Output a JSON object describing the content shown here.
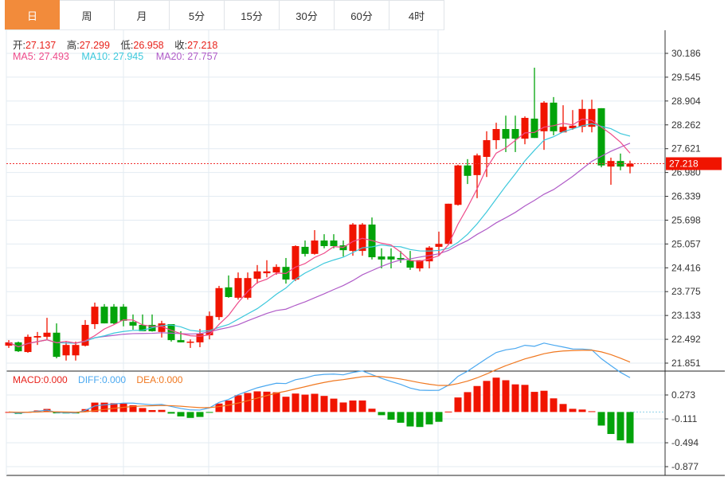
{
  "tabs": [
    "日",
    "周",
    "月",
    "5分",
    "15分",
    "30分",
    "60分",
    "4时"
  ],
  "active_tab": 0,
  "ohlc": {
    "open_label": "开:",
    "open": "27.137",
    "high_label": "高:",
    "high": "27.299",
    "low_label": "低:",
    "low": "26.958",
    "close_label": "收:",
    "close": "27.218"
  },
  "ma": {
    "ma5": "MA5: 27.493",
    "ma10": "MA10: 27.945",
    "ma20": "MA20: 27.757"
  },
  "macd": {
    "macd": "MACD:0.000",
    "diff": "DIFF:0.000",
    "dea": "DEA:0.000"
  },
  "current_price": "27.218",
  "colors": {
    "up": "#f01400",
    "down": "#02a30a",
    "ma5": "#ee4b8a",
    "ma10": "#3cc8dc",
    "ma20": "#b05cc8",
    "diff": "#4aa8f0",
    "dea": "#f07820",
    "accent": "#f28b3b"
  },
  "chart_data": {
    "type": "candlestick",
    "price_ticks": [
      "30.186",
      "29.545",
      "28.904",
      "28.262",
      "27.621",
      "26.980",
      "26.339",
      "25.698",
      "25.057",
      "24.416",
      "23.775",
      "23.133",
      "22.492",
      "21.851"
    ],
    "ylim": [
      21.851,
      30.186
    ],
    "macd_ticks": [
      "0.273",
      "-0.111",
      "-0.494",
      "-0.877"
    ],
    "macd_ylim": [
      -0.877,
      0.273
    ],
    "candles": [
      [
        22.32,
        22.47,
        22.26,
        22.41
      ],
      [
        22.41,
        22.43,
        22.15,
        22.17
      ],
      [
        22.15,
        22.62,
        22.13,
        22.56
      ],
      [
        22.54,
        22.69,
        22.34,
        22.58
      ],
      [
        22.56,
        23.07,
        22.49,
        22.67
      ],
      [
        22.67,
        22.92,
        21.98,
        22.02
      ],
      [
        22.06,
        22.43,
        21.92,
        22.34
      ],
      [
        22.06,
        22.43,
        21.92,
        22.34
      ],
      [
        22.32,
        23.01,
        22.3,
        22.88
      ],
      [
        22.9,
        23.48,
        22.77,
        23.37
      ],
      [
        23.37,
        23.44,
        22.92,
        22.92
      ],
      [
        23.37,
        23.44,
        22.9,
        22.92
      ],
      [
        23.37,
        23.44,
        22.84,
        22.99
      ],
      [
        22.96,
        23.16,
        22.75,
        22.86
      ],
      [
        22.88,
        23.16,
        22.71,
        22.71
      ],
      [
        22.88,
        23.16,
        22.7,
        22.71
      ],
      [
        22.69,
        22.99,
        22.54,
        22.92
      ],
      [
        22.9,
        22.9,
        22.43,
        22.47
      ],
      [
        22.47,
        22.71,
        22.41,
        22.41
      ],
      [
        22.41,
        22.49,
        22.26,
        22.43
      ],
      [
        22.41,
        22.77,
        22.28,
        22.64
      ],
      [
        22.6,
        23.24,
        22.49,
        23.12
      ],
      [
        23.09,
        23.93,
        23.01,
        23.87
      ],
      [
        23.89,
        24.21,
        23.61,
        23.63
      ],
      [
        23.61,
        24.29,
        23.56,
        24.14
      ],
      [
        23.61,
        24.29,
        23.56,
        24.14
      ],
      [
        24.12,
        24.49,
        23.99,
        24.32
      ],
      [
        24.27,
        24.62,
        24.16,
        24.32
      ],
      [
        24.29,
        24.51,
        24.23,
        24.44
      ],
      [
        24.44,
        24.68,
        23.99,
        24.1
      ],
      [
        24.1,
        25.02,
        24.06,
        25.0
      ],
      [
        24.98,
        25.15,
        24.72,
        24.79
      ],
      [
        24.79,
        25.43,
        24.77,
        25.15
      ],
      [
        25.15,
        25.32,
        24.94,
        25.0
      ],
      [
        25.15,
        25.32,
        24.94,
        25.0
      ],
      [
        25.02,
        25.15,
        24.72,
        24.89
      ],
      [
        24.87,
        25.62,
        24.74,
        25.58
      ],
      [
        24.87,
        25.62,
        24.74,
        25.58
      ],
      [
        25.58,
        25.77,
        24.64,
        24.7
      ],
      [
        24.72,
        24.94,
        24.4,
        24.64
      ],
      [
        24.72,
        24.94,
        24.4,
        24.64
      ],
      [
        24.68,
        24.87,
        24.55,
        24.64
      ],
      [
        24.62,
        24.87,
        24.36,
        24.42
      ],
      [
        24.4,
        24.62,
        24.32,
        24.62
      ],
      [
        24.59,
        25.0,
        24.4,
        24.96
      ],
      [
        24.98,
        25.39,
        24.74,
        25.06
      ],
      [
        25.06,
        26.14,
        25.02,
        26.14
      ],
      [
        26.11,
        27.19,
        26.09,
        27.17
      ],
      [
        27.17,
        27.34,
        26.67,
        26.89
      ],
      [
        26.91,
        27.49,
        26.29,
        27.44
      ],
      [
        27.4,
        28.09,
        26.86,
        27.85
      ],
      [
        27.85,
        28.32,
        27.61,
        28.15
      ],
      [
        28.15,
        28.51,
        27.53,
        27.89
      ],
      [
        28.15,
        28.51,
        27.53,
        27.89
      ],
      [
        27.89,
        28.49,
        27.74,
        28.45
      ],
      [
        28.43,
        29.8,
        27.91,
        27.91
      ],
      [
        28.09,
        28.9,
        27.59,
        28.86
      ],
      [
        28.86,
        29.01,
        27.98,
        28.09
      ],
      [
        28.06,
        28.79,
        28.06,
        28.21
      ],
      [
        28.17,
        28.66,
        28.13,
        28.24
      ],
      [
        28.21,
        28.94,
        28.06,
        28.69
      ],
      [
        28.21,
        28.94,
        28.06,
        28.69
      ],
      [
        28.71,
        28.71,
        27.12,
        27.17
      ],
      [
        27.14,
        27.38,
        26.65,
        27.29
      ],
      [
        27.29,
        27.49,
        27.04,
        27.14
      ],
      [
        27.137,
        27.299,
        26.958,
        27.218
      ]
    ]
  }
}
